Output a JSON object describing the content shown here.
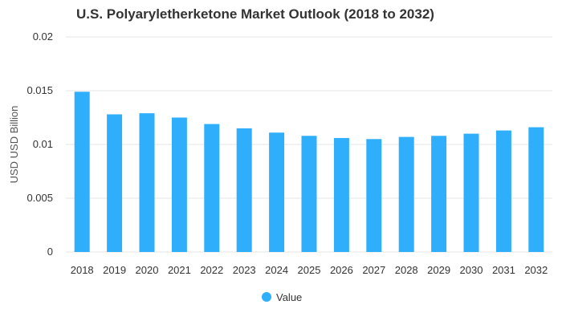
{
  "colors": {
    "bar": "#2eaefb",
    "grid": "#e6e6e6",
    "text": "#333333"
  },
  "chart_data": {
    "type": "bar",
    "title": "U.S. Polyaryletherketone Market Outlook (2018 to 2032)",
    "xlabel": "",
    "ylabel": "USD USD Billion",
    "ylim": [
      0,
      0.02
    ],
    "yticks": [
      0,
      0.005,
      0.01,
      0.015,
      0.02
    ],
    "ytick_labels": [
      "0",
      "0.005",
      "0.01",
      "0.015",
      "0.02"
    ],
    "grid": true,
    "legend_position": "bottom-center",
    "categories": [
      "2018",
      "2019",
      "2020",
      "2021",
      "2022",
      "2023",
      "2024",
      "2025",
      "2026",
      "2027",
      "2028",
      "2029",
      "2030",
      "2031",
      "2032"
    ],
    "series": [
      {
        "name": "Value",
        "values": [
          0.0149,
          0.0128,
          0.0129,
          0.0125,
          0.0119,
          0.0115,
          0.0111,
          0.0108,
          0.0106,
          0.0105,
          0.0107,
          0.0108,
          0.011,
          0.0113,
          0.0116
        ]
      }
    ]
  }
}
